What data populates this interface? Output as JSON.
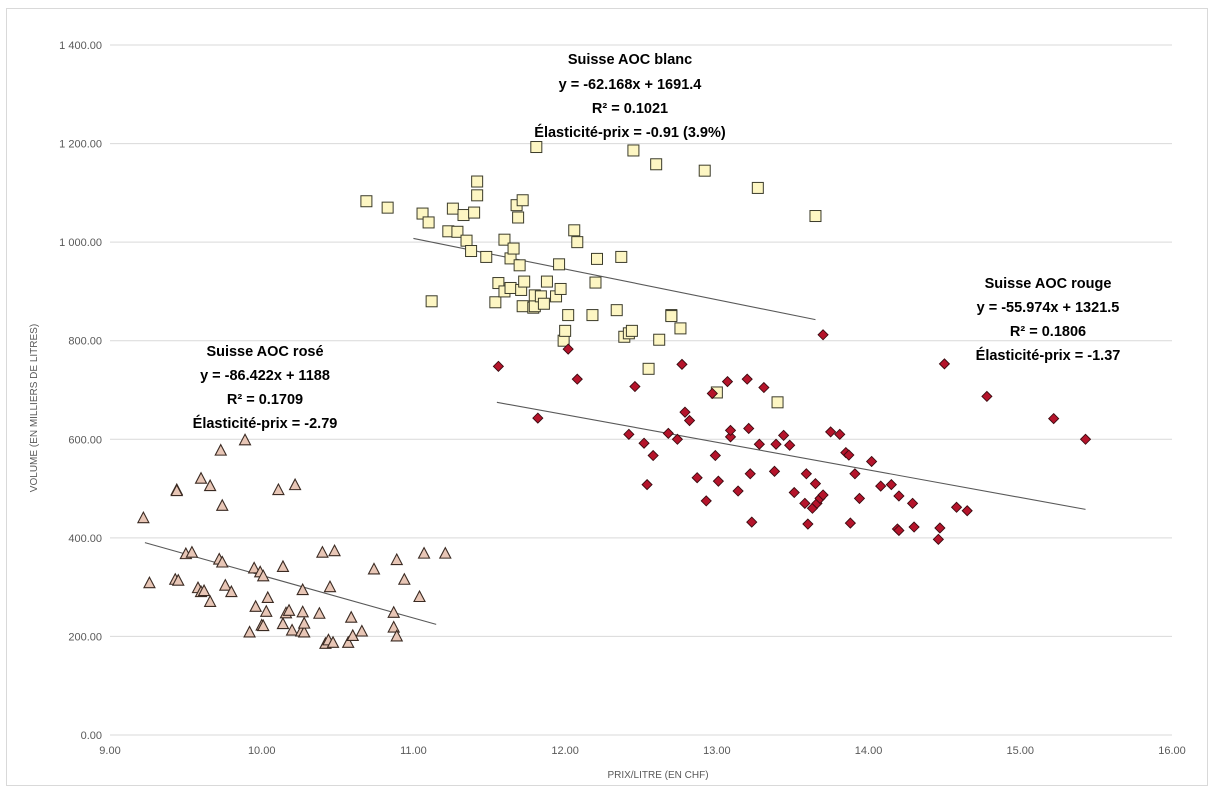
{
  "chart_data": {
    "type": "scatter",
    "xlabel": "PRIX/LITRE (EN CHF)",
    "ylabel": "VOLUME (EN MILLIERS DE LITRES)",
    "xlim": [
      9,
      16
    ],
    "ylim": [
      0,
      1400
    ],
    "x_ticks": [
      "9.00",
      "10.00",
      "11.00",
      "12.00",
      "13.00",
      "14.00",
      "15.00",
      "16.00"
    ],
    "y_ticks": [
      "0.00",
      "200.00",
      "400.00",
      "600.00",
      "800.00",
      "1 000.00",
      "1 200.00",
      "1 400.00"
    ],
    "grid": "horizontal",
    "series": [
      {
        "marker": "triangle",
        "fill": "#e8c6b6",
        "stroke": "#3a2a22",
        "points": [
          [
            9.22,
            440
          ],
          [
            9.26,
            308
          ],
          [
            9.43,
            315
          ],
          [
            9.44,
            497
          ],
          [
            9.44,
            495
          ],
          [
            9.45,
            313
          ],
          [
            9.5,
            367
          ],
          [
            9.54,
            370
          ],
          [
            9.58,
            298
          ],
          [
            9.6,
            520
          ],
          [
            9.6,
            290
          ],
          [
            9.62,
            292
          ],
          [
            9.66,
            270
          ],
          [
            9.66,
            505
          ],
          [
            9.72,
            356
          ],
          [
            9.73,
            577
          ],
          [
            9.74,
            350
          ],
          [
            9.74,
            465
          ],
          [
            9.76,
            303
          ],
          [
            9.8,
            290
          ],
          [
            9.89,
            598
          ],
          [
            9.92,
            208
          ],
          [
            9.95,
            338
          ],
          [
            9.96,
            260
          ],
          [
            9.99,
            330
          ],
          [
            10.0,
            222
          ],
          [
            10.01,
            322
          ],
          [
            10.01,
            221
          ],
          [
            10.03,
            250
          ],
          [
            10.04,
            278
          ],
          [
            10.11,
            497
          ],
          [
            10.14,
            341
          ],
          [
            10.14,
            225
          ],
          [
            10.16,
            247
          ],
          [
            10.18,
            252
          ],
          [
            10.2,
            212
          ],
          [
            10.22,
            507
          ],
          [
            10.26,
            210
          ],
          [
            10.27,
            249
          ],
          [
            10.27,
            294
          ],
          [
            10.28,
            208
          ],
          [
            10.28,
            226
          ],
          [
            10.38,
            246
          ],
          [
            10.4,
            370
          ],
          [
            10.42,
            185
          ],
          [
            10.44,
            192
          ],
          [
            10.45,
            300
          ],
          [
            10.47,
            187
          ],
          [
            10.48,
            373
          ],
          [
            10.57,
            187
          ],
          [
            10.59,
            238
          ],
          [
            10.6,
            201
          ],
          [
            10.66,
            210
          ],
          [
            10.74,
            336
          ],
          [
            10.87,
            248
          ],
          [
            10.87,
            218
          ],
          [
            10.89,
            355
          ],
          [
            10.89,
            200
          ],
          [
            10.94,
            315
          ],
          [
            11.04,
            280
          ],
          [
            11.07,
            368
          ],
          [
            11.21,
            368
          ]
        ]
      },
      {
        "marker": "square",
        "fill": "#fdf6c3",
        "stroke": "#3b3b2a",
        "points": [
          [
            10.69,
            1083
          ],
          [
            10.83,
            1070
          ],
          [
            11.06,
            1058
          ],
          [
            11.1,
            1040
          ],
          [
            11.12,
            880
          ],
          [
            11.23,
            1022
          ],
          [
            11.26,
            1068
          ],
          [
            11.29,
            1021
          ],
          [
            11.33,
            1055
          ],
          [
            11.35,
            1003
          ],
          [
            11.38,
            982
          ],
          [
            11.4,
            1060
          ],
          [
            11.42,
            1123
          ],
          [
            11.42,
            1095
          ],
          [
            11.48,
            970
          ],
          [
            11.54,
            878
          ],
          [
            11.56,
            917
          ],
          [
            11.6,
            1005
          ],
          [
            11.6,
            900
          ],
          [
            11.64,
            967
          ],
          [
            11.64,
            907
          ],
          [
            11.66,
            987
          ],
          [
            11.68,
            1075
          ],
          [
            11.69,
            1050
          ],
          [
            11.7,
            953
          ],
          [
            11.71,
            903
          ],
          [
            11.72,
            1085
          ],
          [
            11.72,
            870
          ],
          [
            11.73,
            920
          ],
          [
            11.79,
            867
          ],
          [
            11.8,
            870
          ],
          [
            11.8,
            892
          ],
          [
            11.81,
            1193
          ],
          [
            11.84,
            890
          ],
          [
            11.86,
            875
          ],
          [
            11.88,
            920
          ],
          [
            11.94,
            890
          ],
          [
            11.96,
            955
          ],
          [
            11.97,
            905
          ],
          [
            11.99,
            800
          ],
          [
            12.0,
            820
          ],
          [
            12.02,
            852
          ],
          [
            12.06,
            1024
          ],
          [
            12.08,
            1000
          ],
          [
            12.18,
            852
          ],
          [
            12.2,
            918
          ],
          [
            12.21,
            966
          ],
          [
            12.34,
            862
          ],
          [
            12.37,
            970
          ],
          [
            12.39,
            808
          ],
          [
            12.42,
            815
          ],
          [
            12.44,
            820
          ],
          [
            12.45,
            1186
          ],
          [
            12.55,
            743
          ],
          [
            12.6,
            1158
          ],
          [
            12.62,
            802
          ],
          [
            12.7,
            852
          ],
          [
            12.7,
            850
          ],
          [
            12.76,
            825
          ],
          [
            12.92,
            1145
          ],
          [
            13.0,
            695
          ],
          [
            13.27,
            1110
          ],
          [
            13.4,
            675
          ],
          [
            13.65,
            1053
          ]
        ]
      },
      {
        "marker": "diamond",
        "fill": "#b5142b",
        "stroke": "#3a0a10",
        "points": [
          [
            11.56,
            748
          ],
          [
            11.82,
            643
          ],
          [
            12.02,
            783
          ],
          [
            12.08,
            722
          ],
          [
            12.42,
            610
          ],
          [
            12.46,
            707
          ],
          [
            12.52,
            592
          ],
          [
            12.54,
            508
          ],
          [
            12.58,
            567
          ],
          [
            12.68,
            612
          ],
          [
            12.74,
            600
          ],
          [
            12.77,
            752
          ],
          [
            12.79,
            655
          ],
          [
            12.82,
            638
          ],
          [
            12.87,
            522
          ],
          [
            12.93,
            475
          ],
          [
            12.97,
            693
          ],
          [
            12.99,
            567
          ],
          [
            13.01,
            515
          ],
          [
            13.07,
            717
          ],
          [
            13.09,
            605
          ],
          [
            13.09,
            618
          ],
          [
            13.14,
            495
          ],
          [
            13.2,
            722
          ],
          [
            13.21,
            622
          ],
          [
            13.22,
            530
          ],
          [
            13.23,
            432
          ],
          [
            13.28,
            590
          ],
          [
            13.31,
            705
          ],
          [
            13.38,
            535
          ],
          [
            13.39,
            590
          ],
          [
            13.44,
            608
          ],
          [
            13.48,
            588
          ],
          [
            13.51,
            492
          ],
          [
            13.58,
            470
          ],
          [
            13.59,
            530
          ],
          [
            13.6,
            428
          ],
          [
            13.63,
            460
          ],
          [
            13.65,
            510
          ],
          [
            13.66,
            470
          ],
          [
            13.68,
            480
          ],
          [
            13.7,
            812
          ],
          [
            13.7,
            487
          ],
          [
            13.75,
            615
          ],
          [
            13.81,
            610
          ],
          [
            13.85,
            573
          ],
          [
            13.87,
            568
          ],
          [
            13.88,
            430
          ],
          [
            13.91,
            530
          ],
          [
            13.94,
            480
          ],
          [
            14.02,
            555
          ],
          [
            14.08,
            505
          ],
          [
            14.15,
            508
          ],
          [
            14.19,
            418
          ],
          [
            14.2,
            415
          ],
          [
            14.2,
            485
          ],
          [
            14.29,
            470
          ],
          [
            14.3,
            422
          ],
          [
            14.46,
            397
          ],
          [
            14.47,
            420
          ],
          [
            14.5,
            753
          ],
          [
            14.58,
            462
          ],
          [
            14.65,
            455
          ],
          [
            14.78,
            687
          ],
          [
            15.22,
            642
          ],
          [
            15.43,
            600
          ]
        ]
      }
    ],
    "trendlines": [
      {
        "x": [
          11.0,
          13.65
        ],
        "slope": -62.168,
        "intercept": 1691.4
      },
      {
        "x": [
          11.55,
          15.43
        ],
        "slope": -55.974,
        "intercept": 1321.5
      },
      {
        "x": [
          9.23,
          11.15
        ],
        "slope": -86.422,
        "intercept": 1188
      }
    ],
    "annotations": [
      {
        "lines": [
          "Suisse AOC blanc",
          "y = -62.168x + 1691.4",
          "R² = 0.1021",
          "Élasticité-prix = -0.91 (3.9%)"
        ]
      },
      {
        "lines": [
          "Suisse AOC rosé",
          "y = -86.422x + 1188",
          "R² = 0.1709",
          "Élasticité-prix = -2.79"
        ]
      },
      {
        "lines": [
          "Suisse AOC rouge",
          "y = -55.974x + 1321.5",
          "R² = 0.1806",
          "Élasticité-prix = -1.37"
        ]
      }
    ],
    "gridline_color": "#d9d9d9",
    "trendline_color": "#595959"
  }
}
